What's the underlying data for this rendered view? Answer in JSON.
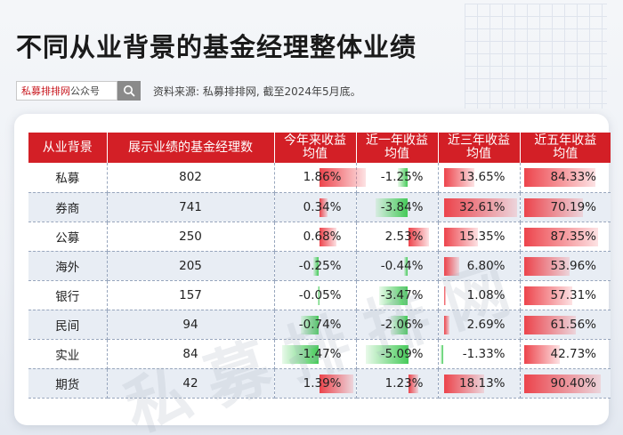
{
  "page": {
    "title": "不同从业背景的基金经理整体业绩",
    "brand_red": "私募排排网",
    "brand_grey": "公众号",
    "search_icon": "search-icon",
    "source": "资料来源: 私募排排网, 截至2024年5月底。",
    "watermark": "私募排排网"
  },
  "colors": {
    "header": "#d31f26",
    "positive": "#ec3a42",
    "negative": "#3cc850"
  },
  "table": {
    "headers": [
      {
        "l1": "从业背景",
        "l2": ""
      },
      {
        "l1": "展示业绩的基金经理数",
        "l2": ""
      },
      {
        "l1": "今年来收益",
        "l2": "均值"
      },
      {
        "l1": "近一年收益",
        "l2": "均值"
      },
      {
        "l1": "近三年收益",
        "l2": "均值"
      },
      {
        "l1": "近五年收益",
        "l2": "均值"
      }
    ],
    "rows": [
      {
        "bg": "私募",
        "count": "802",
        "cells": [
          {
            "text": "1.86%",
            "v": 1.86
          },
          {
            "text": "-1.25%",
            "v": -1.25
          },
          {
            "text": "13.65%",
            "v": 13.65
          },
          {
            "text": "84.33%",
            "v": 84.33
          }
        ]
      },
      {
        "bg": "券商",
        "count": "741",
        "cells": [
          {
            "text": "0.34%",
            "v": 0.34
          },
          {
            "text": "-3.84%",
            "v": -3.84
          },
          {
            "text": "32.61%",
            "v": 32.61
          },
          {
            "text": "70.19%",
            "v": 70.19
          }
        ]
      },
      {
        "bg": "公募",
        "count": "250",
        "cells": [
          {
            "text": "0.68%",
            "v": 0.68
          },
          {
            "text": "2.53%",
            "v": 2.53
          },
          {
            "text": "15.35%",
            "v": 15.35
          },
          {
            "text": "87.35%",
            "v": 87.35
          }
        ]
      },
      {
        "bg": "海外",
        "count": "205",
        "cells": [
          {
            "text": "-0.25%",
            "v": -0.25
          },
          {
            "text": "-0.44%",
            "v": -0.44
          },
          {
            "text": "6.80%",
            "v": 6.8
          },
          {
            "text": "53.96%",
            "v": 53.96
          }
        ]
      },
      {
        "bg": "银行",
        "count": "157",
        "cells": [
          {
            "text": "-0.05%",
            "v": -0.05
          },
          {
            "text": "-3.47%",
            "v": -3.47
          },
          {
            "text": "1.08%",
            "v": 1.08
          },
          {
            "text": "57.31%",
            "v": 57.31
          }
        ]
      },
      {
        "bg": "民间",
        "count": "94",
        "cells": [
          {
            "text": "-0.74%",
            "v": -0.74
          },
          {
            "text": "-2.06%",
            "v": -2.06
          },
          {
            "text": "2.69%",
            "v": 2.69
          },
          {
            "text": "61.56%",
            "v": 61.56
          }
        ]
      },
      {
        "bg": "实业",
        "count": "84",
        "cells": [
          {
            "text": "-1.47%",
            "v": -1.47
          },
          {
            "text": "-5.09%",
            "v": -5.09
          },
          {
            "text": "-1.33%",
            "v": -1.33
          },
          {
            "text": "42.73%",
            "v": 42.73
          }
        ]
      },
      {
        "bg": "期货",
        "count": "42",
        "cells": [
          {
            "text": "1.39%",
            "v": 1.39
          },
          {
            "text": "1.23%",
            "v": 1.23
          },
          {
            "text": "18.13%",
            "v": 18.13
          },
          {
            "text": "90.40%",
            "v": 90.4
          }
        ]
      }
    ]
  }
}
